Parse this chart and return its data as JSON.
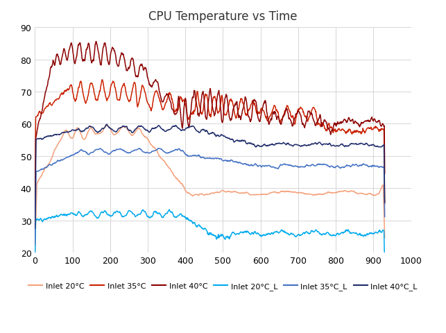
{
  "title": "CPU Temperature vs Time",
  "xlim": [
    0,
    1000
  ],
  "ylim": [
    20,
    90
  ],
  "xticks": [
    0,
    100,
    200,
    300,
    400,
    500,
    600,
    700,
    800,
    900,
    1000
  ],
  "yticks": [
    20,
    30,
    40,
    50,
    60,
    70,
    80,
    90
  ],
  "legend": [
    {
      "label": "Inlet 20°C",
      "color": "#F4A07A"
    },
    {
      "label": "Inlet 35°C",
      "color": "#CC2200"
    },
    {
      "label": "Inlet 40°C",
      "color": "#8B0000"
    },
    {
      "label": "Inlet 20°C_L",
      "color": "#00AAEE"
    },
    {
      "label": "Inlet 35°C_L",
      "color": "#4472C4"
    },
    {
      "label": "Inlet 40°C_L",
      "color": "#1F2D6B"
    }
  ],
  "background_color": "#FFFFFF",
  "grid_color": "#D0D0D0",
  "title_fontsize": 12,
  "tick_fontsize": 9,
  "legend_fontsize": 8
}
